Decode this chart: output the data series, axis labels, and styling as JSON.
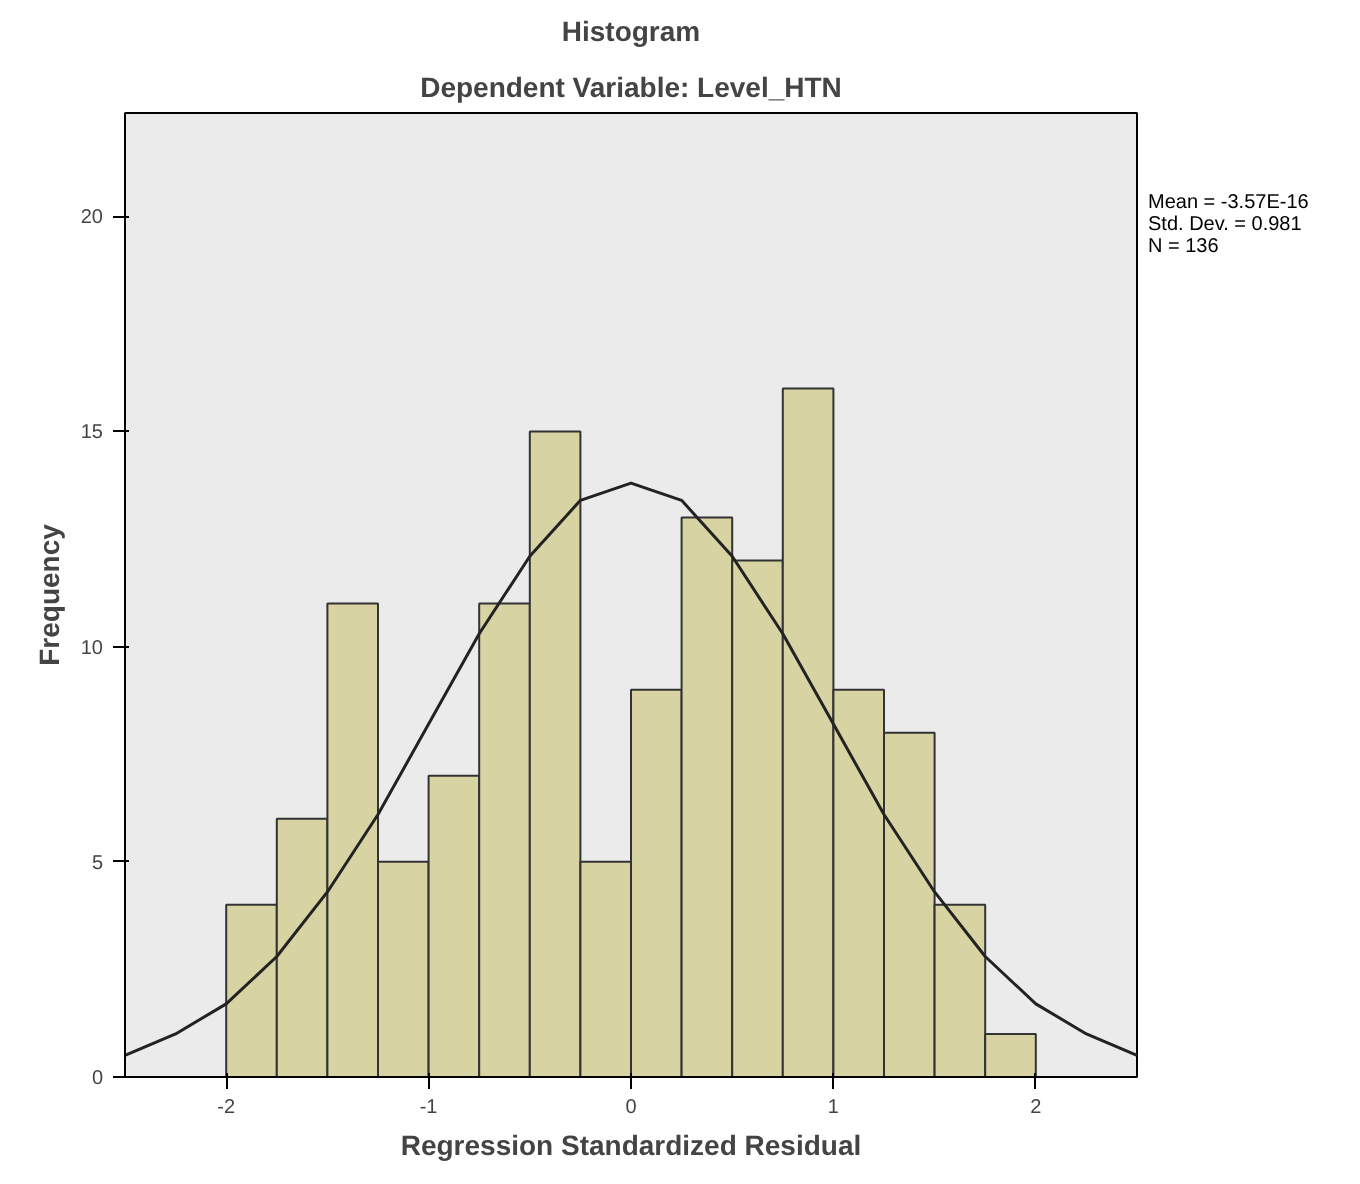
{
  "chart_data": {
    "type": "histogram",
    "title": "Histogram",
    "subtitle": "Dependent Variable: Level_HTN",
    "xlabel": "Regression Standardized Residual",
    "ylabel": "Frequency",
    "bins": [
      -2,
      -1.75,
      -1.5,
      -1.25,
      -1,
      -0.75,
      -0.5,
      -0.25,
      0,
      0.25,
      0.5,
      0.75,
      1,
      1.25,
      1.5,
      1.75,
      2
    ],
    "values": [
      4,
      6,
      11,
      5,
      7,
      11,
      15,
      5,
      9,
      13,
      12,
      16,
      9,
      8,
      4,
      1
    ],
    "color": "#d8d3a2",
    "series": [
      {
        "type": "line",
        "color": "#222222",
        "x": [
          -2.5,
          -2.25,
          -2,
          -1.75,
          -1.5,
          -1.25,
          -1,
          -0.75,
          -0.5,
          -0.25,
          0,
          0.25,
          0.5,
          0.75,
          1,
          1.25,
          1.5,
          1.75,
          2,
          2.25,
          2.5
        ],
        "values": [
          0.5,
          1,
          1.7,
          2.8,
          4.3,
          6.1,
          8.2,
          10.3,
          12.1,
          13.4,
          13.8,
          13.4,
          12.1,
          10.3,
          8.2,
          6.1,
          4.3,
          2.8,
          1.7,
          1,
          0.5
        ]
      }
    ],
    "xlim": [
      -2.5,
      2.5
    ],
    "ylim": [
      0,
      22.4
    ],
    "xticks": [
      {
        "value": -2,
        "label": "-2"
      },
      {
        "value": -1,
        "label": "-1"
      },
      0,
      1,
      2
    ],
    "yticks": [
      0,
      5,
      10,
      15,
      20
    ],
    "grid": false,
    "annotations": [
      "Mean = -3.57E-16",
      "Std. Dev. = 0.981",
      "N = 136"
    ]
  }
}
